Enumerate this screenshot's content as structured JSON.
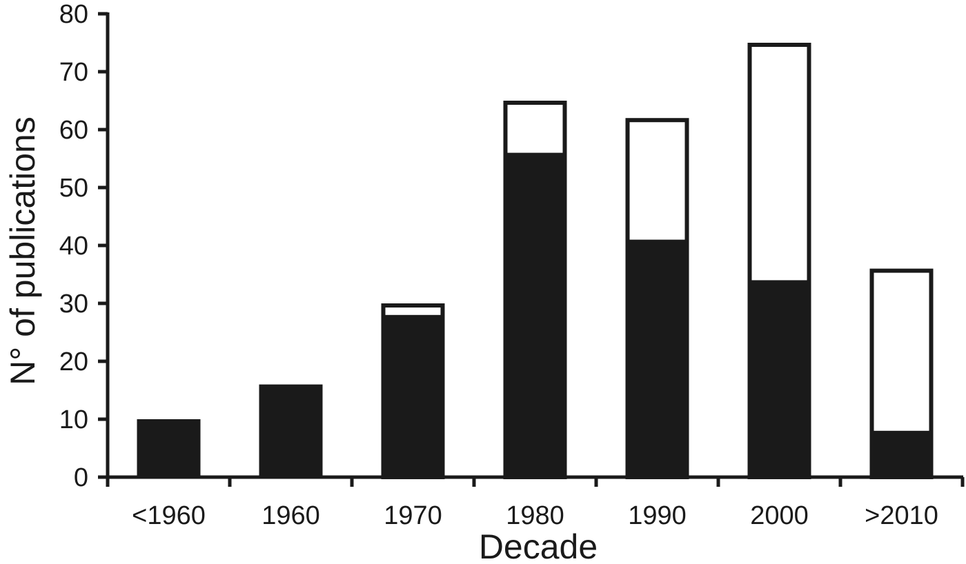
{
  "chart_data": {
    "type": "bar",
    "stacked": true,
    "categories": [
      "<1960",
      "1960",
      "1970",
      "1980",
      "1990",
      "2000",
      ">2010"
    ],
    "series": [
      {
        "values": [
          10,
          16,
          28,
          56,
          41,
          34,
          8
        ],
        "color": "#1a1a1a"
      },
      {
        "values": [
          0,
          0,
          2,
          9,
          21,
          41,
          28
        ],
        "color": "#ffffff"
      }
    ],
    "xlabel": "Decade",
    "ylabel": "N° of publications",
    "ylim": [
      0,
      80
    ],
    "yticks": [
      "0",
      "10",
      "20",
      "30",
      "40",
      "50",
      "60",
      "70",
      "80"
    ],
    "grid": false
  }
}
